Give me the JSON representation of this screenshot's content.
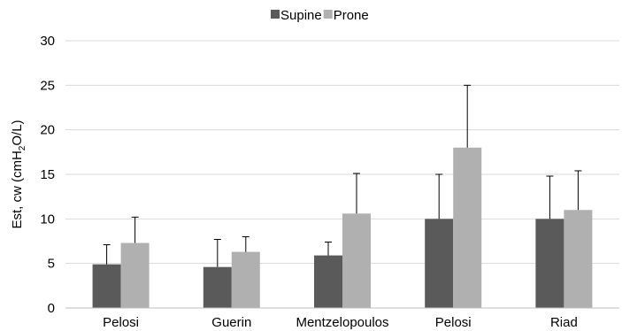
{
  "chart_data": {
    "type": "bar",
    "categories": [
      "Pelosi",
      "Guerin",
      "Mentzelopoulos",
      "Pelosi",
      "Riad"
    ],
    "series": [
      {
        "name": "Supine",
        "values": [
          4.9,
          4.6,
          5.9,
          10.0,
          10.0
        ],
        "error": [
          2.2,
          3.1,
          1.5,
          5.0,
          4.8
        ],
        "color": "#5a5a5a"
      },
      {
        "name": "Prone",
        "values": [
          7.3,
          6.3,
          10.6,
          18.0,
          11.0
        ],
        "error": [
          2.9,
          1.7,
          4.5,
          7.0,
          4.4
        ],
        "color": "#b0b0b0"
      }
    ],
    "ylabel_prefix": "Est, cw (cmH",
    "ylabel_sub": "2",
    "ylabel_suffix": "O/L)",
    "ylim": [
      0,
      30
    ],
    "yticks": [
      "0",
      "5",
      "10",
      "15",
      "20",
      "25",
      "30"
    ],
    "grid": true,
    "legend_position": "top"
  }
}
